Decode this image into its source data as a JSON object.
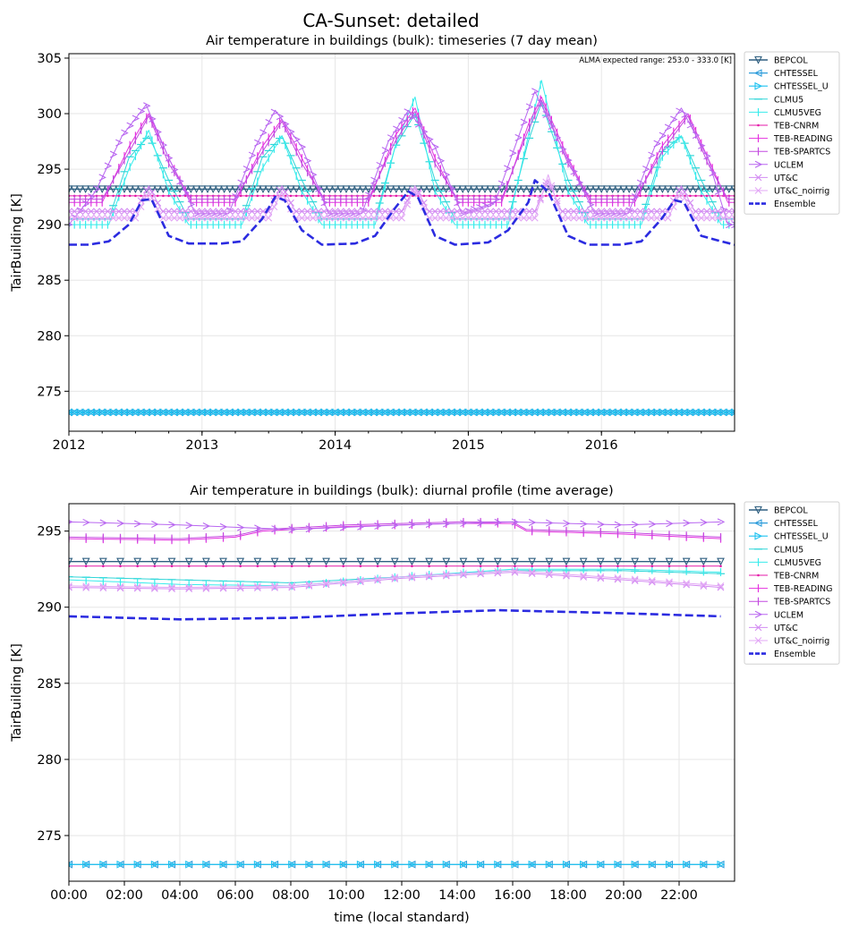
{
  "figure": {
    "suptitle": "CA-Sunset: detailed"
  },
  "colors": {
    "BEPCOL": "#2f5f80",
    "CHTESSEL": "#2e9ddb",
    "CHTESSEL_U": "#1fc2f0",
    "CLMU5": "#2fd6d8",
    "CLMU5VEG": "#38ecec",
    "TEB-CNRM": "#e41aa8",
    "TEB-READING": "#e532e0",
    "TEB-SPARTCS": "#c44ae0",
    "UCLEM": "#b866f0",
    "UT&C": "#d38bf2",
    "UT&C_noirrig": "#e3a8f5",
    "Ensemble": "#2b2be0"
  },
  "chart_data": [
    {
      "type": "line",
      "title": "Air temperature in buildings (bulk): timeseries (7 day mean)",
      "ylabel": "TairBuilding [K]",
      "xlabel": "",
      "ylim": [
        271.4,
        305.4
      ],
      "xlim": [
        2012.0,
        2017.0
      ],
      "yticks": [
        275,
        280,
        285,
        290,
        295,
        300,
        305
      ],
      "xticks": [
        {
          "value": 2012,
          "label": "2012"
        },
        {
          "value": 2013,
          "label": "2013"
        },
        {
          "value": 2014,
          "label": "2014"
        },
        {
          "value": 2015,
          "label": "2015"
        },
        {
          "value": 2016,
          "label": "2016"
        }
      ],
      "annotation": "ALMA expected range: 253.0 - 333.0 [K]",
      "grid": true,
      "legend_position": "outside-right",
      "series": [
        {
          "name": "BEPCOL",
          "x": [
            2012.0,
            2017.0
          ],
          "values": [
            293.2,
            293.2
          ]
        },
        {
          "name": "CHTESSEL",
          "x": [
            2012.0,
            2017.0
          ],
          "values": [
            273.1,
            273.1
          ]
        },
        {
          "name": "CHTESSEL_U",
          "x": [
            2012.0,
            2017.0
          ],
          "values": [
            273.1,
            273.1
          ]
        },
        {
          "name": "CLMU5",
          "x": [
            2012.0,
            2012.3,
            2012.45,
            2012.6,
            2012.75,
            2012.9,
            2013.3,
            2013.45,
            2013.6,
            2013.75,
            2013.9,
            2014.3,
            2014.45,
            2014.6,
            2014.75,
            2014.9,
            2015.3,
            2015.45,
            2015.55,
            2015.75,
            2015.9,
            2016.3,
            2016.45,
            2016.6,
            2016.75,
            2016.9,
            2017.0
          ],
          "values": [
            290.5,
            290.5,
            296.0,
            298.0,
            294.0,
            290.5,
            290.5,
            296.0,
            298.0,
            294.0,
            290.5,
            290.5,
            297.0,
            300.0,
            294.0,
            290.5,
            290.5,
            297.5,
            301.0,
            294.0,
            290.5,
            290.5,
            296.5,
            298.0,
            294.0,
            290.5,
            290.5
          ]
        },
        {
          "name": "CLMU5VEG",
          "x": [
            2012.0,
            2012.3,
            2012.45,
            2012.6,
            2012.75,
            2012.9,
            2013.3,
            2013.45,
            2013.6,
            2013.75,
            2013.9,
            2014.3,
            2014.45,
            2014.6,
            2014.75,
            2014.9,
            2015.3,
            2015.45,
            2015.55,
            2015.75,
            2015.9,
            2016.3,
            2016.45,
            2016.6,
            2016.75,
            2016.9,
            2017.0
          ],
          "values": [
            290.0,
            290.0,
            295.0,
            298.5,
            293.0,
            290.0,
            290.0,
            295.0,
            298.0,
            293.0,
            290.0,
            290.0,
            297.0,
            301.5,
            293.0,
            290.0,
            290.0,
            298.0,
            303.0,
            293.0,
            290.0,
            290.0,
            296.0,
            298.0,
            293.0,
            290.0,
            290.0
          ]
        },
        {
          "name": "TEB-CNRM",
          "x": [
            2012.0,
            2017.0
          ],
          "values": [
            292.6,
            292.6
          ]
        },
        {
          "name": "TEB-READING",
          "x": [
            2012.0,
            2012.25,
            2012.45,
            2012.6,
            2012.75,
            2012.92,
            2013.25,
            2013.45,
            2013.6,
            2013.75,
            2013.92,
            2014.25,
            2014.45,
            2014.6,
            2014.75,
            2014.92,
            2015.25,
            2015.45,
            2015.55,
            2015.75,
            2015.92,
            2016.25,
            2016.45,
            2016.65,
            2016.8,
            2016.95,
            2017.0
          ],
          "values": [
            292.0,
            292.0,
            297.0,
            300.0,
            296.0,
            292.0,
            292.0,
            297.0,
            299.5,
            296.0,
            292.0,
            292.0,
            298.0,
            300.5,
            296.0,
            292.0,
            292.0,
            299.0,
            301.5,
            296.0,
            292.0,
            292.0,
            297.0,
            300.0,
            296.0,
            292.0,
            292.0
          ]
        },
        {
          "name": "TEB-SPARTCS",
          "x": [
            2012.0,
            2012.25,
            2012.45,
            2012.6,
            2012.75,
            2012.92,
            2013.25,
            2013.45,
            2013.6,
            2013.75,
            2013.92,
            2014.25,
            2014.45,
            2014.6,
            2014.75,
            2014.92,
            2015.25,
            2015.45,
            2015.55,
            2015.75,
            2015.92,
            2016.25,
            2016.45,
            2016.65,
            2016.8,
            2016.95,
            2017.0
          ],
          "values": [
            292.3,
            292.3,
            296.5,
            299.8,
            295.5,
            292.3,
            292.3,
            296.5,
            299.3,
            295.5,
            292.3,
            292.3,
            297.5,
            300.2,
            295.5,
            292.3,
            292.3,
            298.5,
            301.2,
            295.5,
            292.3,
            292.3,
            296.5,
            299.8,
            295.5,
            292.3,
            292.3
          ]
        },
        {
          "name": "UCLEM",
          "x": [
            2012.0,
            2012.2,
            2012.4,
            2012.58,
            2012.75,
            2012.95,
            2013.2,
            2013.4,
            2013.55,
            2013.75,
            2013.95,
            2014.2,
            2014.4,
            2014.55,
            2014.75,
            2014.95,
            2015.2,
            2015.38,
            2015.5,
            2015.7,
            2015.95,
            2016.2,
            2016.4,
            2016.6,
            2016.8,
            2016.95,
            2017.0
          ],
          "values": [
            290.0,
            293.0,
            298.0,
            300.8,
            296.0,
            291.0,
            291.0,
            297.0,
            300.3,
            297.0,
            291.0,
            291.0,
            297.5,
            300.3,
            297.0,
            291.0,
            292.0,
            298.0,
            302.0,
            297.0,
            291.0,
            291.0,
            297.0,
            300.5,
            296.0,
            290.0,
            290.0
          ]
        },
        {
          "name": "UT&C",
          "x": [
            2012.0,
            2012.5,
            2012.6,
            2012.7,
            2013.0,
            2013.5,
            2013.6,
            2013.7,
            2014.0,
            2014.5,
            2014.6,
            2014.7,
            2015.0,
            2015.5,
            2015.6,
            2015.7,
            2016.0,
            2016.5,
            2016.6,
            2016.7,
            2017.0
          ],
          "values": [
            291.2,
            291.2,
            293.5,
            291.2,
            291.2,
            291.2,
            293.5,
            291.2,
            291.2,
            291.2,
            293.5,
            291.2,
            291.2,
            291.2,
            294.0,
            291.2,
            291.2,
            291.2,
            293.5,
            291.2,
            291.2
          ]
        },
        {
          "name": "UT&C_noirrig",
          "x": [
            2012.0,
            2012.5,
            2012.6,
            2012.7,
            2013.0,
            2013.5,
            2013.6,
            2013.7,
            2014.0,
            2014.5,
            2014.6,
            2014.7,
            2015.0,
            2015.5,
            2015.6,
            2015.7,
            2016.0,
            2016.5,
            2016.6,
            2016.7,
            2017.0
          ],
          "values": [
            290.6,
            290.6,
            293.0,
            290.6,
            290.6,
            290.6,
            293.0,
            290.6,
            290.6,
            290.6,
            293.5,
            290.6,
            290.6,
            290.6,
            294.5,
            290.6,
            290.6,
            290.6,
            293.0,
            290.6,
            290.6
          ]
        },
        {
          "name": "Ensemble",
          "x": [
            2012.0,
            2012.15,
            2012.3,
            2012.45,
            2012.55,
            2012.62,
            2012.75,
            2012.9,
            2013.15,
            2013.3,
            2013.45,
            2013.55,
            2013.62,
            2013.75,
            2013.9,
            2014.15,
            2014.3,
            2014.45,
            2014.55,
            2014.62,
            2014.75,
            2014.9,
            2015.15,
            2015.3,
            2015.45,
            2015.5,
            2015.6,
            2015.75,
            2015.9,
            2016.15,
            2016.3,
            2016.45,
            2016.55,
            2016.62,
            2016.75,
            2016.9,
            2017.0
          ],
          "values": [
            288.2,
            288.2,
            288.5,
            290.0,
            292.2,
            292.3,
            289.0,
            288.3,
            288.3,
            288.5,
            290.5,
            292.5,
            292.2,
            289.5,
            288.2,
            288.3,
            289.0,
            291.5,
            293.0,
            292.5,
            289.0,
            288.2,
            288.4,
            289.5,
            292.0,
            294.0,
            293.0,
            289.0,
            288.2,
            288.2,
            288.5,
            290.5,
            292.2,
            292.0,
            289.0,
            288.5,
            288.2
          ]
        }
      ]
    },
    {
      "type": "line",
      "title": "Air temperature in buildings (bulk): diurnal profile (time average)",
      "ylabel": "TairBuilding [K]",
      "xlabel": "time (local standard)",
      "ylim": [
        272.0,
        296.8
      ],
      "xlim": [
        0,
        24
      ],
      "yticks": [
        275,
        280,
        285,
        290,
        295
      ],
      "xticks": [
        {
          "value": 0,
          "label": "00:00"
        },
        {
          "value": 2,
          "label": "02:00"
        },
        {
          "value": 4,
          "label": "04:00"
        },
        {
          "value": 6,
          "label": "06:00"
        },
        {
          "value": 8,
          "label": "08:00"
        },
        {
          "value": 10,
          "label": "10:00"
        },
        {
          "value": 12,
          "label": "12:00"
        },
        {
          "value": 14,
          "label": "14:00"
        },
        {
          "value": 16,
          "label": "16:00"
        },
        {
          "value": 18,
          "label": "18:00"
        },
        {
          "value": 20,
          "label": "20:00"
        },
        {
          "value": 22,
          "label": "22:00"
        }
      ],
      "grid": true,
      "legend_position": "outside-right",
      "series": [
        {
          "name": "BEPCOL",
          "x": [
            0,
            23.5
          ],
          "values": [
            293.0,
            293.0
          ]
        },
        {
          "name": "CHTESSEL",
          "x": [
            0,
            23.5
          ],
          "values": [
            273.1,
            273.1
          ]
        },
        {
          "name": "CHTESSEL_U",
          "x": [
            0,
            23.5
          ],
          "values": [
            273.1,
            273.1
          ]
        },
        {
          "name": "CLMU5",
          "x": [
            0,
            4,
            8,
            12,
            16,
            20,
            23.5
          ],
          "values": [
            292.0,
            291.8,
            291.6,
            292.0,
            292.4,
            292.4,
            292.2
          ]
        },
        {
          "name": "CLMU5VEG",
          "x": [
            0,
            4,
            8,
            12,
            16,
            20,
            23.5
          ],
          "values": [
            291.8,
            291.5,
            291.4,
            292.0,
            292.5,
            292.5,
            292.3
          ]
        },
        {
          "name": "TEB-CNRM",
          "x": [
            0,
            23.5
          ],
          "values": [
            292.7,
            292.7
          ]
        },
        {
          "name": "TEB-READING",
          "x": [
            0,
            4,
            6,
            7,
            10,
            14,
            16,
            16.5,
            20,
            23.5
          ],
          "values": [
            294.5,
            294.4,
            294.6,
            295.0,
            295.3,
            295.5,
            295.5,
            295.0,
            294.8,
            294.5
          ]
        },
        {
          "name": "TEB-SPARTCS",
          "x": [
            0,
            4,
            6,
            7,
            10,
            14,
            16,
            16.5,
            20,
            23.5
          ],
          "values": [
            294.6,
            294.5,
            294.7,
            295.1,
            295.4,
            295.6,
            295.6,
            295.1,
            294.9,
            294.6
          ]
        },
        {
          "name": "UCLEM",
          "x": [
            0,
            4,
            8,
            12,
            16,
            20,
            23.5
          ],
          "values": [
            295.6,
            295.4,
            295.1,
            295.4,
            295.6,
            295.4,
            295.6
          ]
        },
        {
          "name": "UT&C",
          "x": [
            0,
            4,
            8,
            12,
            16,
            20,
            23.5
          ],
          "values": [
            291.3,
            291.2,
            291.3,
            291.9,
            292.3,
            291.8,
            291.3
          ]
        },
        {
          "name": "UT&C_noirrig",
          "x": [
            0,
            4,
            8,
            12,
            16,
            20,
            23.5
          ],
          "values": [
            291.4,
            291.3,
            291.4,
            292.0,
            292.4,
            291.9,
            291.4
          ]
        },
        {
          "name": "Ensemble",
          "x": [
            0,
            4,
            8,
            12,
            15.5,
            20,
            23.5
          ],
          "values": [
            289.4,
            289.2,
            289.3,
            289.6,
            289.8,
            289.6,
            289.4
          ]
        }
      ]
    }
  ]
}
